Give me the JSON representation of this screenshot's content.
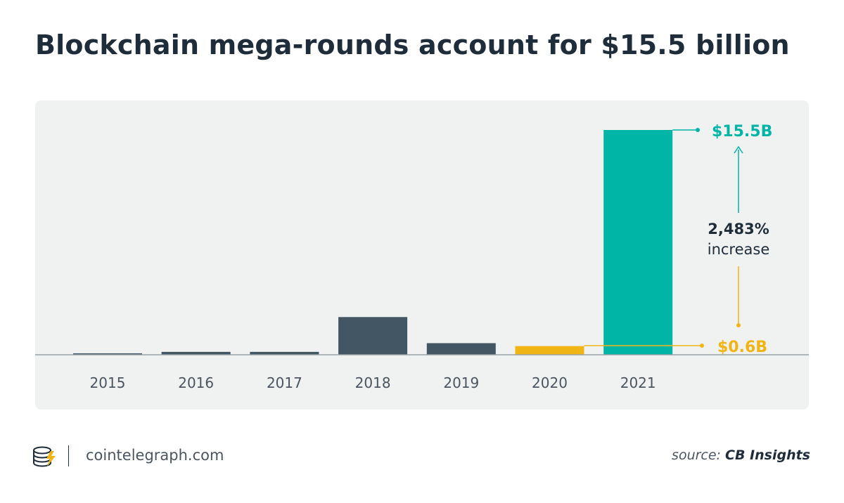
{
  "title": "Blockchain mega-rounds account for $15.5 billion",
  "colors": {
    "bar_default": "#435663",
    "bar_2020": "#f0b515",
    "bar_2021": "#00b4a6",
    "baseline": "#9aa1a6",
    "panel_bg": "#f0f1f1",
    "text_dark": "#1f2d3a"
  },
  "chart_data": {
    "type": "bar",
    "categories": [
      "2015",
      "2016",
      "2017",
      "2018",
      "2019",
      "2020",
      "2021"
    ],
    "values": [
      0.1,
      0.2,
      0.2,
      2.6,
      0.8,
      0.6,
      15.5
    ],
    "ylim": [
      0,
      16
    ],
    "title": "",
    "xlabel": "",
    "ylabel": "",
    "grid": false,
    "annotations": {
      "high_label": "$15.5B",
      "low_label": "$0.6B",
      "pct": "2,483%",
      "pct_word": "increase"
    }
  },
  "footer": {
    "site": "cointelegraph.com",
    "source_prefix": "source:",
    "source_name": "CB Insights"
  }
}
